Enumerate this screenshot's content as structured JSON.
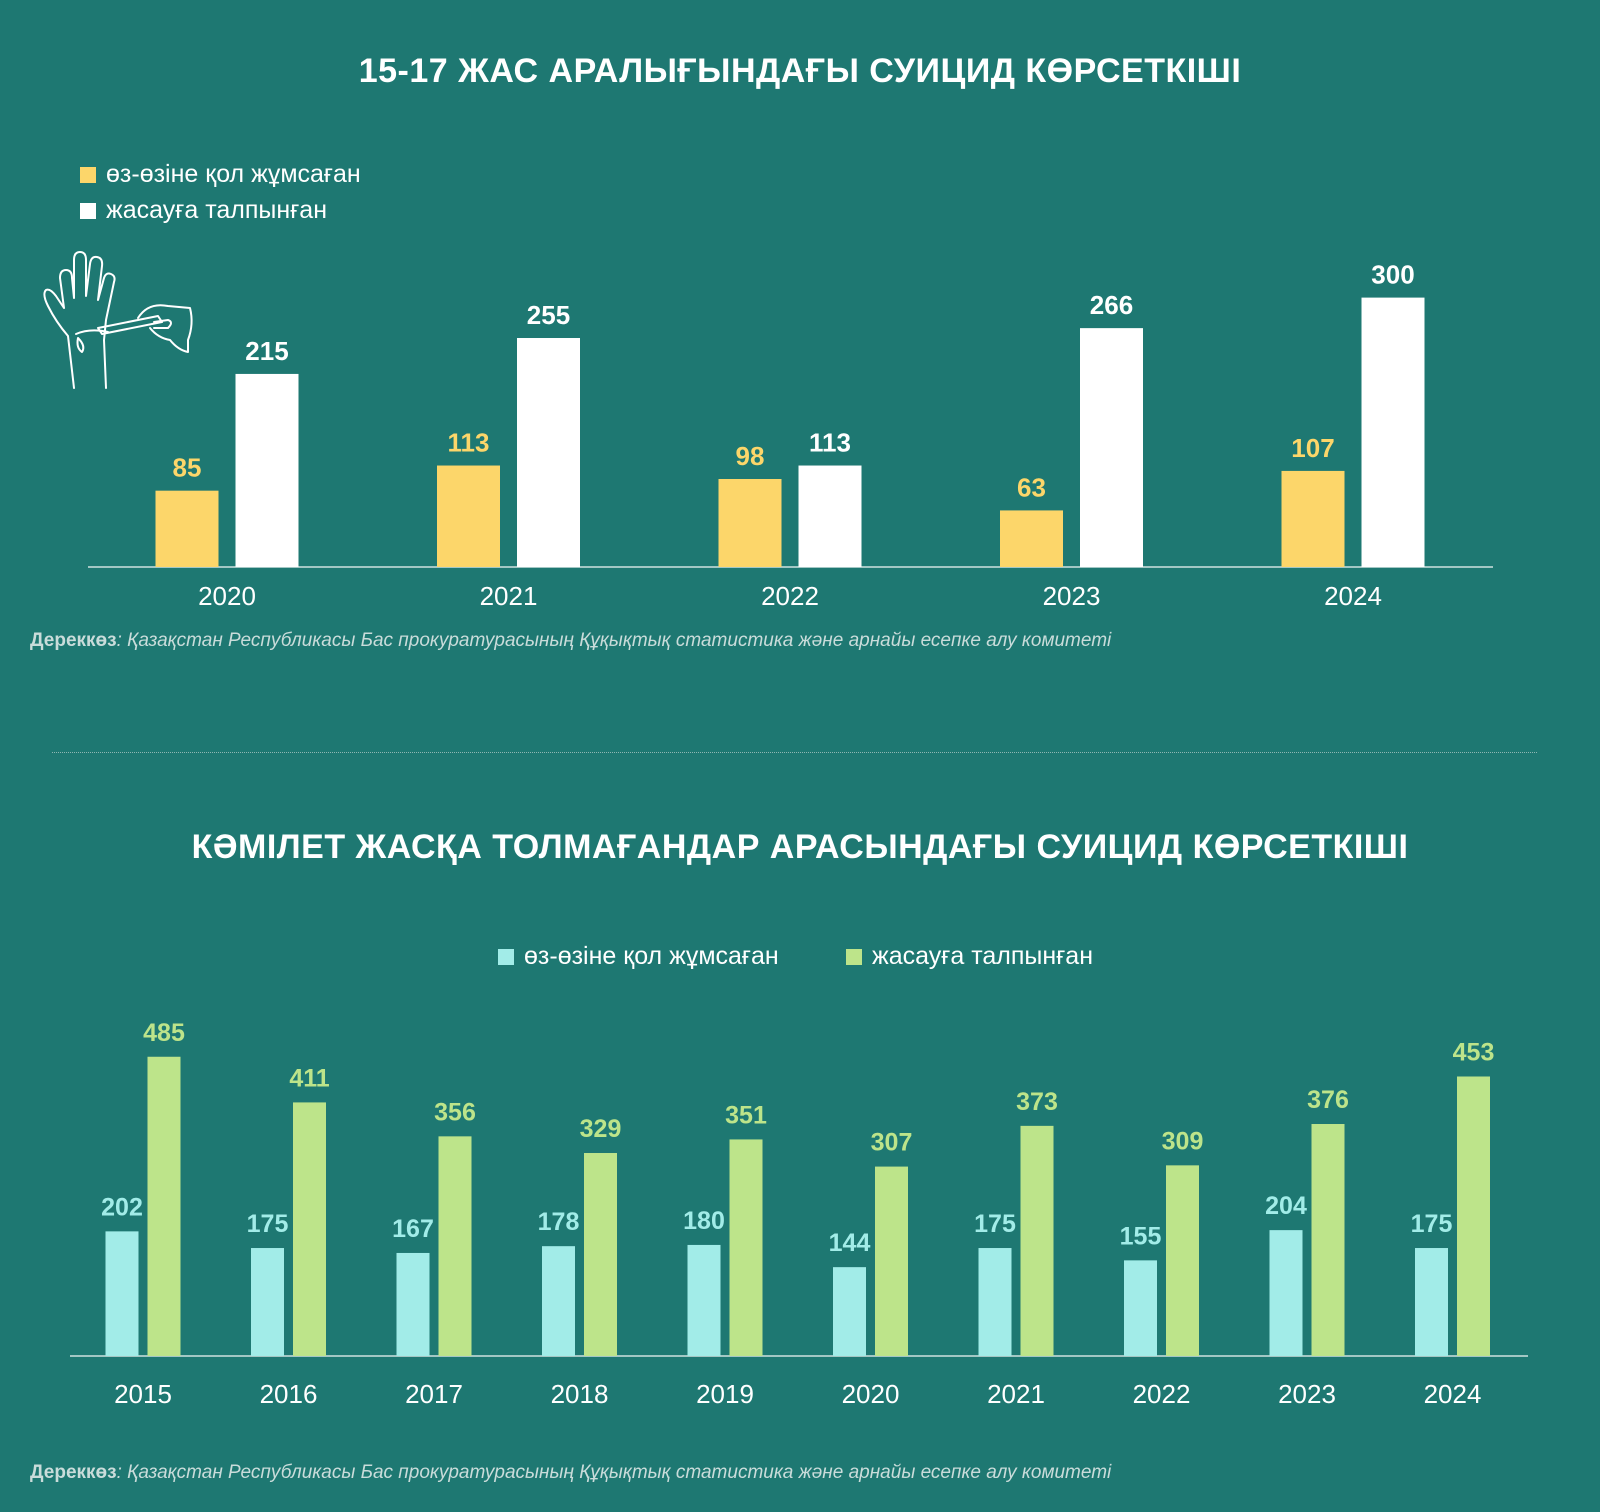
{
  "colors": {
    "background": "#1e7872",
    "c1_series1": "#fcd66a",
    "c1_series2": "#ffffff",
    "c2_series1": "#a2ece8",
    "c2_series2": "#bde48a"
  },
  "chart_data": [
    {
      "type": "bar",
      "title": "15-17 ЖАС АРАЛЫҒЫНДАҒЫ СУИЦИД КӨРСЕТКІШІ",
      "categories": [
        "2020",
        "2021",
        "2022",
        "2023",
        "2024"
      ],
      "series": [
        {
          "name": "өз-өзіне қол жұмсаған",
          "values": [
            85,
            113,
            98,
            63,
            107
          ]
        },
        {
          "name": "жасауға талпынған",
          "values": [
            215,
            255,
            113,
            266,
            300
          ]
        }
      ],
      "legend_position": "top-left",
      "grid": false,
      "source_label": "Дереккөз",
      "source_text": ": Қазақстан Республикасы Бас прокуратурасының Құқықтық статистика және арнайы есепке алу комитеті"
    },
    {
      "type": "bar",
      "title": "КӘМІЛЕТ ЖАСҚА ТОЛМАҒАНДАР АРАСЫНДАҒЫ СУИЦИД КӨРСЕТКІШІ",
      "categories": [
        "2015",
        "2016",
        "2017",
        "2018",
        "2019",
        "2020",
        "2021",
        "2022",
        "2023",
        "2024"
      ],
      "series": [
        {
          "name": "өз-өзіне қол жұмсаған",
          "values": [
            202,
            175,
            167,
            178,
            180,
            144,
            175,
            155,
            204,
            175
          ]
        },
        {
          "name": "жасауға талпынған",
          "values": [
            485,
            411,
            356,
            329,
            351,
            307,
            373,
            309,
            376,
            453
          ]
        }
      ],
      "legend_position": "top-center",
      "grid": false,
      "source_label": "Дереккөз",
      "source_text": ": Қазақстан Республикасы Бас прокуратурасының Құқықтық статистика және арнайы есепке алу комитеті"
    }
  ]
}
